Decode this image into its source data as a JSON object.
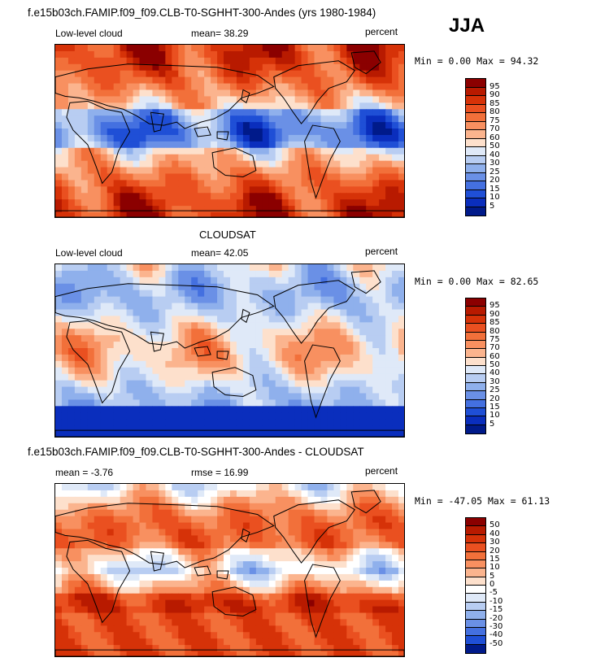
{
  "season": "JJA",
  "panels": [
    {
      "title": "f.e15b03ch.FAMIP.f09_f09.CLB-T0-SGHHT-300-Andes (yrs 1980-1984)",
      "left_label": "Low-level cloud",
      "stat_text": "mean=  38.29",
      "units": "percent",
      "minmax": "Min =   0.00 Max =  94.32",
      "colorbar": {
        "labels": [
          "95",
          "90",
          "85",
          "80",
          "75",
          "70",
          "60",
          "50",
          "40",
          "30",
          "25",
          "20",
          "15",
          "10",
          "5"
        ],
        "colors": [
          "#8b0000",
          "#b81a00",
          "#d63208",
          "#ea5020",
          "#f2703a",
          "#f89060",
          "#fbb48e",
          "#fde0cc",
          "#dfe9f8",
          "#b8cdf2",
          "#8fb0ec",
          "#6a90e6",
          "#4470e0",
          "#1f4fd6",
          "#0a2ebd",
          "#001a8a"
        ]
      },
      "map_palette": "seq",
      "map_icon": "world-map-low-cloud-model"
    },
    {
      "title": "CLOUDSAT",
      "left_label": "Low-level cloud",
      "stat_text": "mean=  42.05",
      "units": "percent",
      "minmax": "Min =   0.00 Max =  82.65",
      "colorbar": {
        "labels": [
          "95",
          "90",
          "85",
          "80",
          "75",
          "70",
          "60",
          "50",
          "40",
          "30",
          "25",
          "20",
          "15",
          "10",
          "5"
        ],
        "colors": [
          "#8b0000",
          "#b81a00",
          "#d63208",
          "#ea5020",
          "#f2703a",
          "#f89060",
          "#fbb48e",
          "#fde0cc",
          "#dfe9f8",
          "#b8cdf2",
          "#8fb0ec",
          "#6a90e6",
          "#4470e0",
          "#1f4fd6",
          "#0a2ebd",
          "#001a8a"
        ]
      },
      "map_palette": "obs",
      "map_icon": "world-map-low-cloud-cloudsat"
    },
    {
      "title": "f.e15b03ch.FAMIP.f09_f09.CLB-T0-SGHHT-300-Andes - CLOUDSAT",
      "left_label": "mean =  -3.76",
      "stat_text": "rmse =  16.99",
      "units": "percent",
      "minmax": "Min = -47.05 Max =  61.13",
      "colorbar": {
        "labels": [
          "50",
          "40",
          "30",
          "20",
          "15",
          "10",
          "5",
          "0",
          "-5",
          "-10",
          "-15",
          "-20",
          "-30",
          "-40",
          "-50"
        ],
        "colors": [
          "#8b0000",
          "#b81a00",
          "#d63208",
          "#ea5020",
          "#f2703a",
          "#f89060",
          "#fbb48e",
          "#fde0cc",
          "#ffffff",
          "#dfe9f8",
          "#b8cdf2",
          "#8fb0ec",
          "#6a90e6",
          "#4470e0",
          "#1f4fd6",
          "#001a8a"
        ]
      },
      "map_palette": "diff",
      "map_icon": "world-map-low-cloud-difference"
    }
  ]
}
